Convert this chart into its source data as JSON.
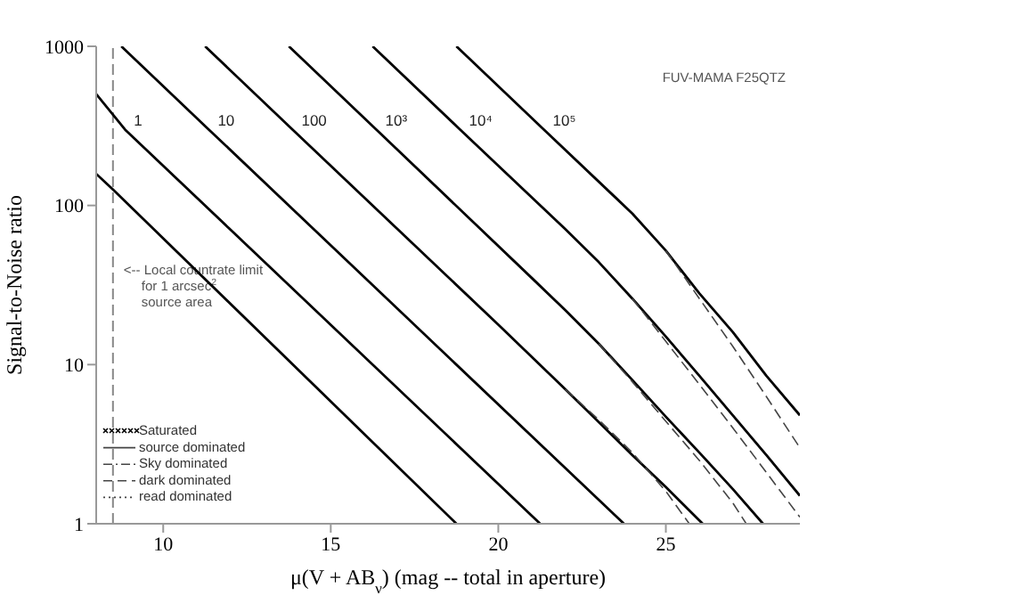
{
  "chart_data": {
    "type": "line",
    "xlabel": "μ(V + AB$_{ν}$) (mag -- total in aperture)",
    "ylabel": "Signal-to-Noise ratio",
    "xlim": [
      8,
      29
    ],
    "xticks": [
      10,
      15,
      20,
      25
    ],
    "ylim": [
      1,
      1000
    ],
    "yticks": [
      1,
      10,
      100,
      1000
    ],
    "log": "y",
    "marker": "none",
    "series": [
      {
        "color": "#000000",
        "x": [
          8,
          8.5,
          18.75
        ],
        "values": [
          158,
          126,
          1
        ]
      },
      {
        "name": "1",
        "color": "#000000",
        "x": [
          8,
          8.86,
          21.25
        ],
        "values": [
          501,
          300,
          1
        ]
      },
      {
        "name": "10",
        "color": "#000000",
        "x": [
          8.75,
          11.36,
          23.75
        ],
        "values": [
          1000,
          300,
          1
        ]
      },
      {
        "name": "100",
        "color": "#000000",
        "x": [
          11.25,
          13.86,
          20,
          22,
          24,
          25,
          26.1
        ],
        "values": [
          1000,
          300,
          17.8,
          7,
          2.7,
          1.7,
          1
        ]
      },
      {
        "name": "10³",
        "color": "#000000",
        "x": [
          13.75,
          16.36,
          21,
          22,
          23,
          24,
          25,
          26,
          27,
          27.9
        ],
        "values": [
          1000,
          300,
          35,
          22,
          13.5,
          8,
          4.7,
          2.8,
          1.65,
          1
        ]
      },
      {
        "name": "10⁴",
        "color": "#000000",
        "x": [
          16.25,
          18.86,
          22,
          23,
          24,
          25,
          26,
          27,
          28,
          29
        ],
        "values": [
          1000,
          300,
          71,
          44,
          26,
          15,
          8.5,
          4.8,
          2.7,
          1.5
        ]
      },
      {
        "name": "10⁵",
        "color": "#000000",
        "x": [
          18.75,
          21.36,
          23.5,
          24,
          25,
          26,
          27,
          28,
          29
        ],
        "values": [
          1000,
          300,
          112,
          89,
          52,
          28,
          16,
          8.5,
          4.8
        ]
      },
      {
        "color": "#444444",
        "line_style": "dashed",
        "x": [
          22,
          23,
          24,
          25,
          25.7
        ],
        "values": [
          7,
          4.5,
          2.8,
          1.6,
          1
        ]
      },
      {
        "color": "#444444",
        "line_style": "dashed",
        "x": [
          23,
          24,
          25,
          26,
          27,
          27.4
        ],
        "values": [
          13.5,
          7.8,
          4.4,
          2.5,
          1.35,
          1
        ]
      },
      {
        "color": "#444444",
        "line_style": "dashed",
        "x": [
          24,
          25,
          26,
          27,
          28,
          29
        ],
        "values": [
          26,
          14,
          7.5,
          4,
          2.1,
          1.1
        ]
      },
      {
        "color": "#444444",
        "line_style": "dashed",
        "x": [
          25,
          26,
          27,
          28,
          29
        ],
        "values": [
          52,
          26,
          13,
          6.3,
          3
        ]
      }
    ],
    "ref_lines": [
      {
        "axis": "x",
        "value": 8.5,
        "label": "<-- Local countrate limit\nfor 1 arcsec$^{2}$\nsource area",
        "color": "#888888",
        "line_style": "dashed"
      }
    ],
    "annotations": [
      "FUV-MAMA F25QTZ",
      "Saturated",
      "source dominated",
      "Sky dominated",
      "dark dominated",
      "read dominated"
    ]
  }
}
